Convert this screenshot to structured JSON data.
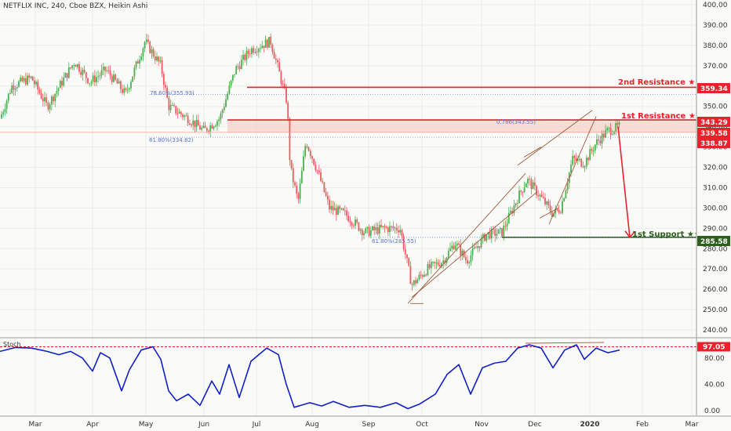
{
  "header": {
    "title": "NETFLIX INC, 240, Cboe BZX, Heikin Ashi"
  },
  "colors": {
    "up": "#4caf50",
    "down": "#f0595f",
    "resistance": "#e8222b",
    "support": "#2e5e1e",
    "zone_fill": "#f7cfc6",
    "stoch": "#1020c8",
    "fib": "#5577cc",
    "trend": "#a05a3a",
    "projection": "#e8222b"
  },
  "chart_data": [
    {
      "type": "candlestick",
      "title": "NETFLIX INC, 240, Cboe BZX, Heikin Ashi",
      "xlabel": "",
      "ylabel": "",
      "ylim": [
        240,
        400
      ],
      "y_ticks": [
        "400.00",
        "390.00",
        "380.00",
        "370.00",
        "360.00",
        "350.00",
        "340.00",
        "330.00",
        "320.00",
        "310.00",
        "300.00",
        "290.00",
        "280.00",
        "270.00",
        "260.00",
        "250.00",
        "240.00"
      ],
      "x_ticks": [
        "Mar",
        "Apr",
        "May",
        "Jun",
        "Jul",
        "Aug",
        "Sep",
        "Oct",
        "Nov",
        "Dec",
        "2020",
        "Feb",
        "Mar"
      ],
      "series": [
        {
          "x": [
            "Mar",
            "Apr",
            "May",
            "Jun",
            "Jul",
            "Aug",
            "Sep",
            "Oct",
            "Nov",
            "Dec",
            "2020"
          ],
          "values": [
            363,
            360,
            380,
            345,
            383,
            330,
            290,
            265,
            290,
            315,
            340
          ],
          "path": [
            [
              0,
              344
            ],
            [
              15,
              360
            ],
            [
              40,
              364
            ],
            [
              60,
              350
            ],
            [
              95,
              372
            ],
            [
              115,
              362
            ],
            [
              135,
              368
            ],
            [
              160,
              356
            ],
            [
              185,
              382
            ],
            [
              205,
              370
            ],
            [
              215,
              350
            ],
            [
              240,
              344
            ],
            [
              260,
              338
            ],
            [
              280,
              344
            ],
            [
              300,
              368
            ],
            [
              320,
              378
            ],
            [
              345,
              382
            ],
            [
              355,
              368
            ],
            [
              366,
              352
            ],
            [
              370,
              320
            ],
            [
              380,
              303
            ],
            [
              390,
              333
            ],
            [
              405,
              318
            ],
            [
              420,
              300
            ],
            [
              440,
              297
            ],
            [
              465,
              288
            ],
            [
              490,
              290
            ],
            [
              510,
              290
            ],
            [
              525,
              262
            ],
            [
              545,
              270
            ],
            [
              565,
              274
            ],
            [
              580,
              283
            ],
            [
              595,
              274
            ],
            [
              620,
              287
            ],
            [
              640,
              288
            ],
            [
              660,
              305
            ],
            [
              672,
              314
            ],
            [
              690,
              305
            ],
            [
              705,
              297
            ],
            [
              715,
              300
            ],
            [
              730,
              324
            ],
            [
              745,
              322
            ],
            [
              760,
              332
            ],
            [
              775,
              338
            ],
            [
              790,
              340
            ]
          ]
        }
      ],
      "levels": [
        {
          "label": "2nd Resistance ★★",
          "value": 359.34,
          "tag": "359.34"
        },
        {
          "label": "1st Resistance ★★",
          "value": 343.29,
          "tag": "343.29"
        },
        {
          "label": "",
          "value": 339.58,
          "tag": "339.58"
        },
        {
          "label": "",
          "value": 338.87,
          "tag": "338.87"
        },
        {
          "label": "1st Support ★★",
          "value": 285.58,
          "tag": "285.58"
        }
      ],
      "fib_labels": [
        {
          "text": "78.60%(355.93)",
          "value": 355.93
        },
        {
          "text": "61.80%(334.82)",
          "value": 334.82
        },
        {
          "text": "0.786(343.55)",
          "value": 343.55
        },
        {
          "text": "61.80%(285.55)",
          "value": 285.55
        }
      ]
    },
    {
      "type": "line",
      "title": "Stoch",
      "ylim": [
        0,
        100
      ],
      "y_ticks": [
        "80.00",
        "40.00",
        "0.00"
      ],
      "level": {
        "value": 97.05,
        "tag": "97.05"
      },
      "series": [
        {
          "name": "Stoch",
          "points": [
            [
              0,
              90
            ],
            [
              20,
              96
            ],
            [
              40,
              95
            ],
            [
              60,
              90
            ],
            [
              75,
              85
            ],
            [
              90,
              90
            ],
            [
              105,
              80
            ],
            [
              118,
              60
            ],
            [
              128,
              88
            ],
            [
              140,
              80
            ],
            [
              155,
              30
            ],
            [
              165,
              62
            ],
            [
              180,
              92
            ],
            [
              195,
              97
            ],
            [
              205,
              78
            ],
            [
              215,
              30
            ],
            [
              225,
              15
            ],
            [
              240,
              25
            ],
            [
              255,
              8
            ],
            [
              270,
              45
            ],
            [
              280,
              25
            ],
            [
              292,
              70
            ],
            [
              305,
              20
            ],
            [
              320,
              75
            ],
            [
              340,
              95
            ],
            [
              355,
              85
            ],
            [
              365,
              40
            ],
            [
              375,
              5
            ],
            [
              395,
              12
            ],
            [
              410,
              7
            ],
            [
              425,
              14
            ],
            [
              445,
              5
            ],
            [
              465,
              8
            ],
            [
              485,
              5
            ],
            [
              505,
              12
            ],
            [
              520,
              3
            ],
            [
              535,
              10
            ],
            [
              555,
              25
            ],
            [
              570,
              55
            ],
            [
              585,
              70
            ],
            [
              600,
              25
            ],
            [
              615,
              65
            ],
            [
              630,
              72
            ],
            [
              645,
              75
            ],
            [
              660,
              95
            ],
            [
              675,
              100
            ],
            [
              690,
              95
            ],
            [
              705,
              65
            ],
            [
              720,
              92
            ],
            [
              735,
              100
            ],
            [
              745,
              78
            ],
            [
              760,
              95
            ],
            [
              775,
              88
            ],
            [
              790,
              92
            ]
          ]
        }
      ]
    }
  ]
}
